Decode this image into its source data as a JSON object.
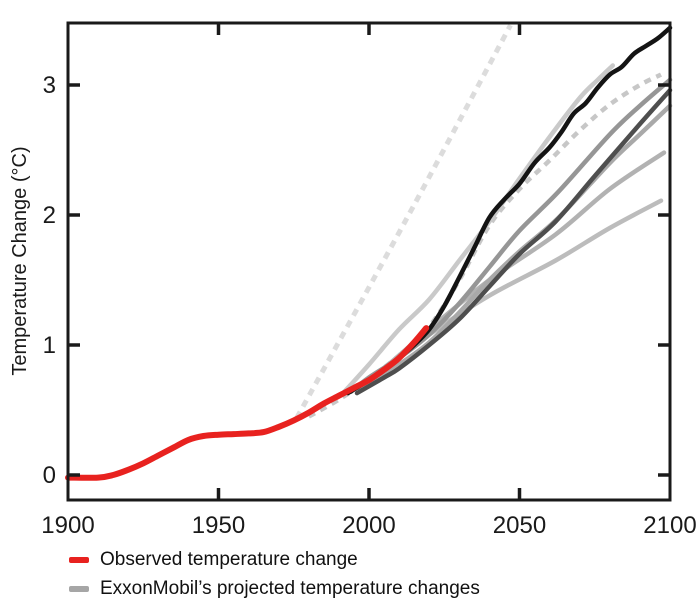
{
  "colors": {
    "background": "#ffffff",
    "frame": "#1a1a1a",
    "tick_label": "#1a1a1a",
    "observed_red": "#e8221f",
    "legend_gray": "#a6a6a6"
  },
  "legend": {
    "items": [
      {
        "label": "Observed temperature change",
        "color": "#e8221f"
      },
      {
        "label": "ExxonMobil’s projected temperature changes",
        "color": "#a6a6a6"
      }
    ]
  },
  "chart_data": {
    "type": "line",
    "title": "",
    "xlabel": "",
    "ylabel": "Temperature Change (°C)",
    "xlim": [
      1900,
      2100
    ],
    "ylim": [
      -0.19,
      3.48
    ],
    "grid": false,
    "legend_position": "bottom-left",
    "x_ticks_labeled": [
      1900,
      1950,
      2000,
      2050,
      2100
    ],
    "x_ticks_marked": [
      1950,
      2000,
      2050
    ],
    "y_ticks": [
      0,
      1,
      2,
      3
    ],
    "series": [
      {
        "name": "exxon-projection-dashed-steep",
        "group": "projection",
        "color": "#dcdcdc",
        "width": 5,
        "dash": "7 6",
        "points": [
          [
            1976,
            0.44
          ],
          [
            2012,
            1.95
          ],
          [
            2047,
            3.46
          ]
        ]
      },
      {
        "name": "exxon-projection-dashed-2",
        "group": "projection",
        "color": "#c7c7c7",
        "width": 4.5,
        "dash": "7 6",
        "points": [
          [
            1980,
            0.45
          ],
          [
            1990,
            0.58
          ],
          [
            2000,
            0.74
          ],
          [
            2010,
            0.92
          ],
          [
            2020,
            1.14
          ],
          [
            2030,
            1.5
          ],
          [
            2040,
            1.92
          ],
          [
            2050,
            2.2
          ],
          [
            2060,
            2.42
          ],
          [
            2070,
            2.65
          ],
          [
            2080,
            2.85
          ],
          [
            2090,
            3.0
          ],
          [
            2097,
            3.08
          ]
        ]
      },
      {
        "name": "exxon-projection-low",
        "group": "projection",
        "color": "#bcbcbc",
        "width": 4.5,
        "dash": null,
        "points": [
          [
            2000,
            0.72
          ],
          [
            2010,
            0.9
          ],
          [
            2020,
            1.08
          ],
          [
            2040,
            1.38
          ],
          [
            2062,
            1.65
          ],
          [
            2080,
            1.9
          ],
          [
            2097,
            2.11
          ]
        ]
      },
      {
        "name": "exxon-projection-mid-low",
        "group": "projection",
        "color": "#b2b2b2",
        "width": 4.5,
        "dash": null,
        "points": [
          [
            1998,
            0.68
          ],
          [
            2010,
            0.92
          ],
          [
            2020,
            1.12
          ],
          [
            2040,
            1.5
          ],
          [
            2062,
            1.85
          ],
          [
            2080,
            2.2
          ],
          [
            2098,
            2.48
          ]
        ]
      },
      {
        "name": "exxon-projection-medium-2",
        "group": "projection",
        "color": "#a9a9a9",
        "width": 4.5,
        "dash": null,
        "points": [
          [
            1997,
            0.66
          ],
          [
            2005,
            0.78
          ],
          [
            2010,
            0.85
          ],
          [
            2020,
            1.02
          ],
          [
            2030,
            1.25
          ],
          [
            2040,
            1.5
          ],
          [
            2050,
            1.72
          ],
          [
            2063,
            1.98
          ],
          [
            2080,
            2.4
          ],
          [
            2090,
            2.62
          ],
          [
            2100,
            2.84
          ]
        ]
      },
      {
        "name": "exxon-projection-medium-1",
        "group": "projection",
        "color": "#969696",
        "width": 4.5,
        "dash": null,
        "points": [
          [
            1994,
            0.64
          ],
          [
            2000,
            0.75
          ],
          [
            2010,
            0.9
          ],
          [
            2020,
            1.08
          ],
          [
            2030,
            1.32
          ],
          [
            2040,
            1.6
          ],
          [
            2050,
            1.88
          ],
          [
            2063,
            2.18
          ],
          [
            2080,
            2.62
          ],
          [
            2090,
            2.84
          ],
          [
            2100,
            3.04
          ]
        ]
      },
      {
        "name": "exxon-projection-dark",
        "group": "projection",
        "color": "#4e4e4e",
        "width": 4.5,
        "dash": null,
        "points": [
          [
            1996,
            0.63
          ],
          [
            2005,
            0.75
          ],
          [
            2010,
            0.82
          ],
          [
            2020,
            1.0
          ],
          [
            2030,
            1.2
          ],
          [
            2040,
            1.45
          ],
          [
            2050,
            1.7
          ],
          [
            2062,
            1.95
          ],
          [
            2075,
            2.3
          ],
          [
            2090,
            2.7
          ],
          [
            2100,
            2.96
          ]
        ]
      },
      {
        "name": "exxon-projection-light-steep",
        "group": "projection",
        "color": "#c9c9c9",
        "width": 4.5,
        "dash": null,
        "points": [
          [
            1991,
            0.62
          ],
          [
            2000,
            0.85
          ],
          [
            2010,
            1.12
          ],
          [
            2020,
            1.35
          ],
          [
            2030,
            1.65
          ],
          [
            2040,
            1.95
          ],
          [
            2050,
            2.28
          ],
          [
            2060,
            2.6
          ],
          [
            2070,
            2.9
          ],
          [
            2076,
            3.04
          ],
          [
            2081,
            3.15
          ]
        ]
      },
      {
        "name": "exxon-projection-black",
        "group": "projection",
        "color": "#141414",
        "width": 4.5,
        "dash": null,
        "points": [
          [
            1993,
            0.63
          ],
          [
            2000,
            0.73
          ],
          [
            2005,
            0.81
          ],
          [
            2010,
            0.9
          ],
          [
            2015,
            1.0
          ],
          [
            2020,
            1.12
          ],
          [
            2025,
            1.3
          ],
          [
            2030,
            1.52
          ],
          [
            2035,
            1.75
          ],
          [
            2040,
            1.98
          ],
          [
            2045,
            2.12
          ],
          [
            2050,
            2.24
          ],
          [
            2055,
            2.4
          ],
          [
            2060,
            2.52
          ],
          [
            2064,
            2.64
          ],
          [
            2068,
            2.78
          ],
          [
            2072,
            2.86
          ],
          [
            2076,
            2.98
          ],
          [
            2080,
            3.08
          ],
          [
            2084,
            3.14
          ],
          [
            2088,
            3.24
          ],
          [
            2092,
            3.3
          ],
          [
            2096,
            3.36
          ],
          [
            2100,
            3.44
          ]
        ]
      },
      {
        "name": "observed-temperature",
        "group": "observed",
        "color": "#e8221f",
        "width": 6,
        "dash": null,
        "points": [
          [
            1900,
            -0.02
          ],
          [
            1910,
            -0.02
          ],
          [
            1915,
            0.0
          ],
          [
            1920,
            0.04
          ],
          [
            1925,
            0.09
          ],
          [
            1930,
            0.15
          ],
          [
            1935,
            0.21
          ],
          [
            1940,
            0.27
          ],
          [
            1945,
            0.3
          ],
          [
            1950,
            0.31
          ],
          [
            1955,
            0.315
          ],
          [
            1960,
            0.32
          ],
          [
            1965,
            0.33
          ],
          [
            1970,
            0.37
          ],
          [
            1975,
            0.42
          ],
          [
            1980,
            0.48
          ],
          [
            1985,
            0.55
          ],
          [
            1990,
            0.61
          ],
          [
            1995,
            0.67
          ],
          [
            2000,
            0.73
          ],
          [
            2005,
            0.81
          ],
          [
            2010,
            0.9
          ],
          [
            2015,
            1.02
          ],
          [
            2019,
            1.13
          ]
        ]
      }
    ]
  }
}
